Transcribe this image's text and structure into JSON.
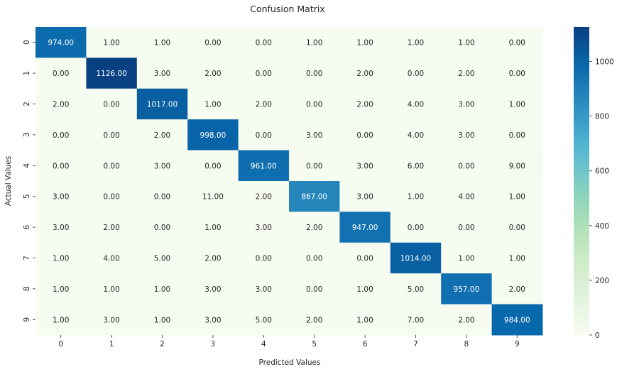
{
  "chart_data": {
    "type": "heatmap",
    "title": "Confusion Matrix",
    "xlabel": "Predicted Values",
    "ylabel": "Actual Values",
    "x_categories": [
      "0",
      "1",
      "2",
      "3",
      "4",
      "5",
      "6",
      "7",
      "8",
      "9"
    ],
    "y_categories": [
      "0",
      "1",
      "2",
      "3",
      "4",
      "5",
      "6",
      "7",
      "8",
      "9"
    ],
    "values": [
      [
        974,
        1,
        1,
        0,
        0,
        1,
        1,
        1,
        1,
        0
      ],
      [
        0,
        1126,
        3,
        2,
        0,
        0,
        2,
        0,
        2,
        0
      ],
      [
        2,
        0,
        1017,
        1,
        2,
        0,
        2,
        4,
        3,
        1
      ],
      [
        0,
        0,
        2,
        998,
        0,
        3,
        0,
        4,
        3,
        0
      ],
      [
        0,
        0,
        3,
        0,
        961,
        0,
        3,
        6,
        0,
        9
      ],
      [
        3,
        0,
        0,
        11,
        2,
        867,
        3,
        1,
        4,
        1
      ],
      [
        3,
        2,
        0,
        1,
        3,
        2,
        947,
        0,
        0,
        0
      ],
      [
        1,
        4,
        5,
        2,
        0,
        0,
        0,
        1014,
        1,
        1
      ],
      [
        1,
        1,
        1,
        3,
        3,
        0,
        1,
        5,
        957,
        2
      ],
      [
        1,
        3,
        1,
        3,
        5,
        2,
        1,
        7,
        2,
        984
      ]
    ],
    "value_format": "2 decimals",
    "colormap": "GnBu",
    "vmin": 0,
    "vmax": 1126,
    "colorbar_ticks": [
      0,
      200,
      400,
      600,
      800,
      1000
    ],
    "colors": {
      "low": "#f7fcf0",
      "high": "#084081",
      "text_dark": "#262626",
      "text_light": "#ffffff"
    }
  }
}
